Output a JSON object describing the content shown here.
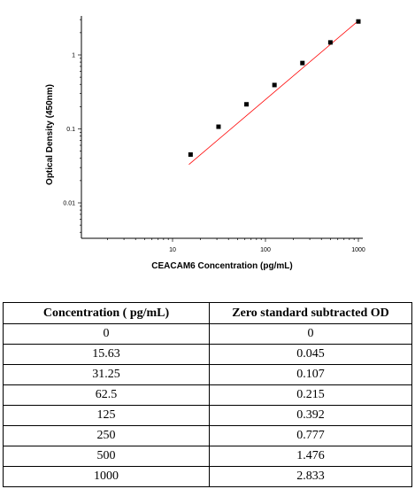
{
  "chart_data": {
    "type": "scatter",
    "title": "",
    "xlabel": "CEACAM6 Concentration (pg/mL)",
    "ylabel": "Optical Density (450nm)",
    "x_scale": "log",
    "y_scale": "log",
    "xlim": [
      1,
      1000
    ],
    "ylim": [
      0.003,
      3
    ],
    "x_ticks": [
      {
        "value": 10,
        "label": "10"
      },
      {
        "value": 100,
        "label": "100"
      },
      {
        "value": 1000,
        "label": "1000"
      }
    ],
    "y_ticks": [
      {
        "value": 0.01,
        "label": "0.01"
      },
      {
        "value": 0.1,
        "label": "0.1"
      },
      {
        "value": 1,
        "label": "1"
      }
    ],
    "series": [
      {
        "x": [
          15.63,
          31.25,
          62.5,
          125,
          250,
          500,
          1000
        ],
        "y": [
          0.045,
          0.107,
          0.215,
          0.392,
          0.777,
          1.476,
          2.833
        ],
        "marker": "square",
        "color": "#000000"
      }
    ],
    "fit_line": {
      "x": [
        15,
        1000
      ],
      "y": [
        0.033,
        2.9
      ],
      "color": "#ff0000"
    },
    "grid": false,
    "legend": "none"
  },
  "table": {
    "headers": [
      "Concentration ( pg/mL)",
      "Zero standard subtracted OD"
    ],
    "rows": [
      [
        "0",
        "0"
      ],
      [
        "15.63",
        "0.045"
      ],
      [
        "31.25",
        "0.107"
      ],
      [
        "62.5",
        "0.215"
      ],
      [
        "125",
        "0.392"
      ],
      [
        "250",
        "0.777"
      ],
      [
        "500",
        "1.476"
      ],
      [
        "1000",
        "2.833"
      ]
    ]
  }
}
